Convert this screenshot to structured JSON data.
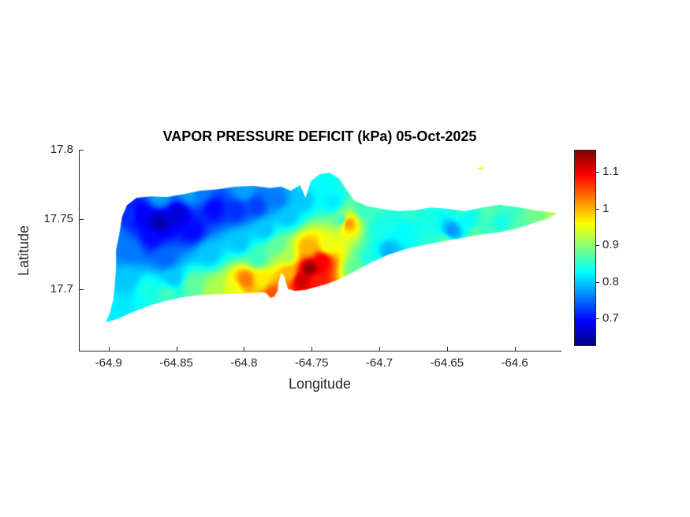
{
  "chart_data": {
    "type": "heatmap",
    "title": "VAPOR PRESSURE DEFICIT (kPa) 05-Oct-2025",
    "xlabel": "Longitude",
    "ylabel": "Latitude",
    "xlim": [
      -64.922,
      -64.566
    ],
    "ylim": [
      17.655,
      17.8
    ],
    "x_ticks": [
      -64.9,
      -64.85,
      -64.8,
      -64.75,
      -64.7,
      -64.65,
      -64.6
    ],
    "x_tick_labels": [
      "-64.9",
      "-64.85",
      "-64.8",
      "-64.75",
      "-64.7",
      "-64.65",
      "-64.6"
    ],
    "y_ticks": [
      17.7,
      17.75,
      17.8
    ],
    "y_tick_labels": [
      "17.7",
      "17.75",
      "17.8"
    ],
    "colormap": "jet",
    "clim": [
      0.63,
      1.16
    ],
    "colorbar_ticks": [
      0.7,
      0.8,
      0.9,
      1,
      1.1
    ],
    "colorbar_tick_labels": [
      "0.7",
      "0.8",
      "0.9",
      "1",
      "1.1"
    ],
    "island_outline": [
      [
        -64.902,
        17.676
      ],
      [
        -64.899,
        17.683
      ],
      [
        -64.8965,
        17.6925
      ],
      [
        -64.8955,
        17.703
      ],
      [
        -64.8945,
        17.7145
      ],
      [
        -64.8945,
        17.728
      ],
      [
        -64.892,
        17.74
      ],
      [
        -64.89,
        17.752
      ],
      [
        -64.8865,
        17.76
      ],
      [
        -64.8795,
        17.7655
      ],
      [
        -64.869,
        17.7665
      ],
      [
        -64.857,
        17.766
      ],
      [
        -64.845,
        17.768
      ],
      [
        -64.8325,
        17.7705
      ],
      [
        -64.8195,
        17.7715
      ],
      [
        -64.806,
        17.7735
      ],
      [
        -64.7925,
        17.774
      ],
      [
        -64.7805,
        17.7725
      ],
      [
        -64.7725,
        17.7735
      ],
      [
        -64.7655,
        17.7705
      ],
      [
        -64.7585,
        17.7745
      ],
      [
        -64.7545,
        17.7655
      ],
      [
        -64.7505,
        17.7775
      ],
      [
        -64.744,
        17.7825
      ],
      [
        -64.7365,
        17.7835
      ],
      [
        -64.7295,
        17.779
      ],
      [
        -64.724,
        17.771
      ],
      [
        -64.7185,
        17.7635
      ],
      [
        -64.709,
        17.7595
      ],
      [
        -64.698,
        17.7575
      ],
      [
        -64.6865,
        17.756
      ],
      [
        -64.674,
        17.7565
      ],
      [
        -64.6615,
        17.7585
      ],
      [
        -64.649,
        17.7575
      ],
      [
        -64.6365,
        17.756
      ],
      [
        -64.624,
        17.7585
      ],
      [
        -64.6115,
        17.7605
      ],
      [
        -64.599,
        17.759
      ],
      [
        -64.5875,
        17.757
      ],
      [
        -64.5775,
        17.7555
      ],
      [
        -64.5685,
        17.7545
      ],
      [
        -64.5755,
        17.7505
      ],
      [
        -64.5855,
        17.7475
      ],
      [
        -64.598,
        17.7435
      ],
      [
        -64.6125,
        17.7405
      ],
      [
        -64.6285,
        17.7385
      ],
      [
        -64.6455,
        17.7355
      ],
      [
        -64.6625,
        17.7325
      ],
      [
        -64.679,
        17.729
      ],
      [
        -64.6935,
        17.7245
      ],
      [
        -64.706,
        17.719
      ],
      [
        -64.7185,
        17.7125
      ],
      [
        -64.7295,
        17.707
      ],
      [
        -64.7385,
        17.7035
      ],
      [
        -64.7465,
        17.7015
      ],
      [
        -64.754,
        17.6995
      ],
      [
        -64.762,
        17.6985
      ],
      [
        -64.7675,
        17.7
      ],
      [
        -64.7705,
        17.7095
      ],
      [
        -64.7725,
        17.7115
      ],
      [
        -64.7745,
        17.7045
      ],
      [
        -64.775,
        17.699
      ],
      [
        -64.7775,
        17.6945
      ],
      [
        -64.7805,
        17.6935
      ],
      [
        -64.783,
        17.6965
      ],
      [
        -64.785,
        17.6975
      ],
      [
        -64.796,
        17.697
      ],
      [
        -64.8085,
        17.6965
      ],
      [
        -64.821,
        17.696
      ],
      [
        -64.8335,
        17.6955
      ],
      [
        -64.8455,
        17.694
      ],
      [
        -64.857,
        17.6915
      ],
      [
        -64.868,
        17.6885
      ],
      [
        -64.878,
        17.685
      ],
      [
        -64.8865,
        17.6815
      ],
      [
        -64.893,
        17.6785
      ]
    ],
    "islet_outline": [
      [
        -64.628,
        17.7862
      ],
      [
        -64.6245,
        17.7876
      ],
      [
        -64.622,
        17.7868
      ],
      [
        -64.625,
        17.7856
      ]
    ],
    "islet_value": 0.95,
    "field_points": [
      [
        -64.863,
        17.7475,
        0.655
      ],
      [
        -64.876,
        17.753,
        0.69
      ],
      [
        -64.849,
        17.7535,
        0.675
      ],
      [
        -64.838,
        17.742,
        0.7
      ],
      [
        -64.868,
        17.7375,
        0.7
      ],
      [
        -64.884,
        17.7275,
        0.76
      ],
      [
        -64.858,
        17.7225,
        0.75
      ],
      [
        -64.885,
        17.7535,
        0.72
      ],
      [
        -64.886,
        17.708,
        0.8
      ],
      [
        -64.899,
        17.6875,
        0.82
      ],
      [
        -64.871,
        17.7,
        0.84
      ],
      [
        -64.852,
        17.7075,
        0.8
      ],
      [
        -64.822,
        17.7575,
        0.7
      ],
      [
        -64.806,
        17.7565,
        0.72
      ],
      [
        -64.791,
        17.7595,
        0.73
      ],
      [
        -64.7755,
        17.764,
        0.76
      ],
      [
        -64.832,
        17.77,
        0.76
      ],
      [
        -64.8,
        17.771,
        0.78
      ],
      [
        -64.862,
        17.7665,
        0.78
      ],
      [
        -64.84,
        17.769,
        0.78
      ],
      [
        -64.894,
        17.735,
        0.76
      ],
      [
        -64.826,
        17.7255,
        0.8
      ],
      [
        -64.803,
        17.7335,
        0.8
      ],
      [
        -64.785,
        17.7425,
        0.8
      ],
      [
        -64.768,
        17.7525,
        0.8
      ],
      [
        -64.838,
        17.703,
        0.88
      ],
      [
        -64.8565,
        17.696,
        0.86
      ],
      [
        -64.8215,
        17.7,
        0.92
      ],
      [
        -64.7985,
        17.7065,
        1.03
      ],
      [
        -64.808,
        17.699,
        0.95
      ],
      [
        -64.787,
        17.7065,
        0.97
      ],
      [
        -64.79,
        17.722,
        0.86
      ],
      [
        -64.775,
        17.7305,
        0.88
      ],
      [
        -64.7515,
        17.7145,
        1.15
      ],
      [
        -64.758,
        17.7065,
        1.12
      ],
      [
        -64.7425,
        17.7205,
        1.1
      ],
      [
        -64.7465,
        17.7065,
        1.08
      ],
      [
        -64.7665,
        17.711,
        1.0
      ],
      [
        -64.738,
        17.731,
        0.95
      ],
      [
        -64.7525,
        17.7295,
        1.0
      ],
      [
        -64.768,
        17.7235,
        0.92
      ],
      [
        -64.779,
        17.696,
        1.05
      ],
      [
        -64.757,
        17.7645,
        0.8
      ],
      [
        -64.7445,
        17.7755,
        0.83
      ],
      [
        -64.735,
        17.7625,
        0.82
      ],
      [
        -64.7275,
        17.7495,
        0.86
      ],
      [
        -64.7235,
        17.7475,
        1.02
      ],
      [
        -64.7115,
        17.7575,
        0.86
      ],
      [
        -64.717,
        17.7145,
        0.88
      ],
      [
        -64.706,
        17.7205,
        0.84
      ],
      [
        -64.7,
        17.7435,
        0.84
      ],
      [
        -64.6925,
        17.7265,
        0.79
      ],
      [
        -64.68,
        17.7405,
        0.83
      ],
      [
        -64.666,
        17.7485,
        0.84
      ],
      [
        -64.6605,
        17.7325,
        0.85
      ],
      [
        -64.6465,
        17.7415,
        0.775
      ],
      [
        -64.635,
        17.7495,
        0.83
      ],
      [
        -64.623,
        17.7415,
        0.86
      ],
      [
        -64.6095,
        17.7495,
        0.84
      ],
      [
        -64.596,
        17.7445,
        0.87
      ],
      [
        -64.5835,
        17.7505,
        0.89
      ],
      [
        -64.571,
        17.754,
        0.92
      ],
      [
        -64.608,
        17.758,
        0.86
      ],
      [
        -64.64,
        17.757,
        0.85
      ],
      [
        -64.675,
        17.7555,
        0.85
      ],
      [
        -64.618,
        17.7575,
        0.87
      ],
      [
        -64.6265,
        17.7375,
        0.88
      ],
      [
        -64.651,
        17.7335,
        0.875
      ]
    ]
  }
}
